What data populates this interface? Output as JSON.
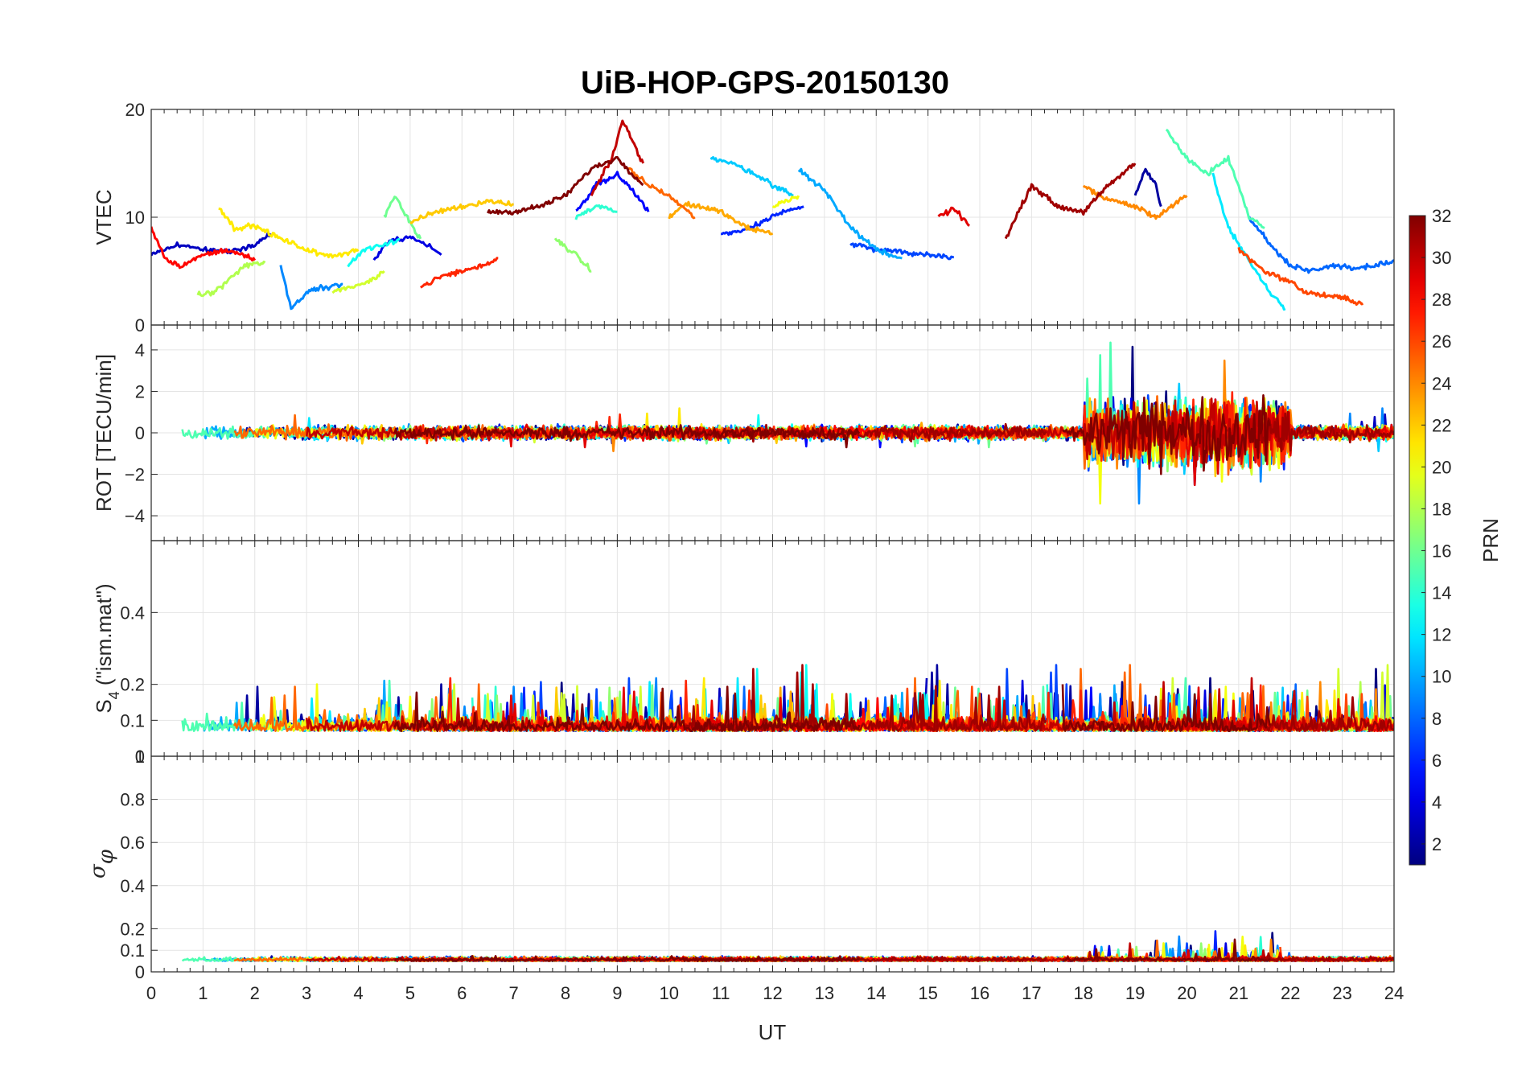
{
  "chart_data": {
    "type": "line",
    "title": "UiB-HOP-GPS-20150130",
    "xlabel": "UT",
    "x_ticks": [
      "0",
      "1",
      "2",
      "3",
      "4",
      "5",
      "6",
      "7",
      "8",
      "9",
      "10",
      "11",
      "12",
      "13",
      "14",
      "15",
      "16",
      "17",
      "18",
      "19",
      "20",
      "21",
      "22",
      "23",
      "24"
    ],
    "xlim": [
      0,
      24
    ],
    "grid": true,
    "colormap": "jet",
    "colorbar": {
      "label": "PRN",
      "range": [
        1,
        32
      ],
      "ticks": [
        "2",
        "4",
        "6",
        "8",
        "10",
        "12",
        "14",
        "16",
        "18",
        "20",
        "22",
        "24",
        "26",
        "28",
        "30",
        "32"
      ]
    },
    "panels": [
      {
        "name": "VTEC",
        "ylabel": "VTEC",
        "ylim": [
          0,
          20
        ],
        "y_ticks": [
          "0",
          "10",
          "20"
        ],
        "series": [
          {
            "prn": 2,
            "points": [
              [
                19.0,
                12
              ],
              [
                19.2,
                14.5
              ],
              [
                19.4,
                13
              ],
              [
                19.5,
                11
              ]
            ]
          },
          {
            "prn": 3,
            "points": [
              [
                0,
                6.5
              ],
              [
                0.5,
                7.5
              ],
              [
                1,
                7
              ],
              [
                1.5,
                6.8
              ],
              [
                2,
                7.5
              ],
              [
                2.3,
                8.5
              ]
            ]
          },
          {
            "prn": 4,
            "points": [
              [
                4.3,
                6
              ],
              [
                4.6,
                7.8
              ],
              [
                5,
                8.2
              ],
              [
                5.3,
                7.5
              ],
              [
                5.6,
                6.5
              ]
            ]
          },
          {
            "prn": 5,
            "points": [
              [
                8.2,
                10.5
              ],
              [
                8.6,
                13
              ],
              [
                9,
                14
              ],
              [
                9.3,
                12.5
              ],
              [
                9.6,
                10.5
              ]
            ]
          },
          {
            "prn": 6,
            "points": [
              [
                11.0,
                8.5
              ],
              [
                11.4,
                8.7
              ],
              [
                11.8,
                9.5
              ],
              [
                12.2,
                10.5
              ],
              [
                12.6,
                11
              ]
            ]
          },
          {
            "prn": 7,
            "points": [
              [
                13.5,
                7.5
              ],
              [
                14,
                7
              ],
              [
                14.5,
                6.8
              ],
              [
                15,
                6.5
              ],
              [
                15.5,
                6.3
              ]
            ]
          },
          {
            "prn": 8,
            "points": [
              [
                21.2,
                10
              ],
              [
                21.6,
                7.5
              ],
              [
                22,
                5.5
              ],
              [
                22.4,
                5
              ],
              [
                22.8,
                5.5
              ],
              [
                23.2,
                5.3
              ],
              [
                23.6,
                5.5
              ],
              [
                24,
                6
              ]
            ]
          },
          {
            "prn": 9,
            "points": [
              [
                2.5,
                5.5
              ],
              [
                2.7,
                1.5
              ],
              [
                3,
                3
              ],
              [
                3.3,
                3.5
              ],
              [
                3.7,
                3.8
              ]
            ]
          },
          {
            "prn": 10,
            "points": [
              [
                12.5,
                14.5
              ],
              [
                13,
                12.5
              ],
              [
                13.5,
                9
              ],
              [
                14,
                7
              ],
              [
                14.5,
                6.2
              ]
            ]
          },
          {
            "prn": 11,
            "points": [
              [
                10.8,
                15.5
              ],
              [
                11.2,
                15
              ],
              [
                11.6,
                14.2
              ],
              [
                12,
                13
              ],
              [
                12.4,
                12
              ]
            ]
          },
          {
            "prn": 12,
            "points": [
              [
                20.5,
                14
              ],
              [
                20.8,
                9
              ],
              [
                21.2,
                6
              ],
              [
                21.6,
                3
              ],
              [
                21.9,
                1.5
              ]
            ]
          },
          {
            "prn": 13,
            "points": [
              [
                3.8,
                5.5
              ],
              [
                4.1,
                7
              ],
              [
                4.5,
                7.5
              ],
              [
                4.8,
                8
              ]
            ]
          },
          {
            "prn": 14,
            "points": [
              [
                8.2,
                10
              ],
              [
                8.6,
                11
              ],
              [
                9,
                10.5
              ]
            ]
          },
          {
            "prn": 15,
            "points": [
              [
                19.6,
                18
              ],
              [
                20,
                15.5
              ],
              [
                20.4,
                14
              ],
              [
                20.8,
                15.5
              ],
              [
                21.2,
                10
              ],
              [
                21.5,
                9
              ]
            ]
          },
          {
            "prn": 16,
            "points": [
              [
                4.5,
                10
              ],
              [
                4.7,
                12
              ],
              [
                5,
                9.5
              ],
              [
                5.2,
                8
              ]
            ]
          },
          {
            "prn": 17,
            "points": [
              [
                7.8,
                8
              ],
              [
                8.2,
                6.5
              ],
              [
                8.5,
                5
              ]
            ]
          },
          {
            "prn": 18,
            "points": [
              [
                0.9,
                2.8
              ],
              [
                1.2,
                3
              ],
              [
                1.5,
                4.2
              ],
              [
                1.8,
                5.5
              ],
              [
                2.2,
                5.8
              ]
            ]
          },
          {
            "prn": 19,
            "points": [
              [
                3.5,
                3
              ],
              [
                3.8,
                3.5
              ],
              [
                4.2,
                4
              ],
              [
                4.5,
                5
              ]
            ]
          },
          {
            "prn": 20,
            "points": [
              [
                12,
                11
              ],
              [
                12.5,
                12
              ]
            ]
          },
          {
            "prn": 21,
            "points": [
              [
                1.3,
                11
              ],
              [
                1.6,
                9
              ],
              [
                2,
                9.2
              ],
              [
                2.5,
                8
              ],
              [
                3,
                7
              ],
              [
                3.3,
                6.5
              ],
              [
                3.6,
                6.5
              ],
              [
                4,
                7
              ]
            ]
          },
          {
            "prn": 22,
            "points": [
              [
                5,
                9.5
              ],
              [
                5.5,
                10.5
              ],
              [
                6,
                11
              ],
              [
                6.5,
                11.5
              ],
              [
                7,
                11.2
              ]
            ]
          },
          {
            "prn": 23,
            "points": [
              [
                10,
                10
              ],
              [
                10.3,
                11.2
              ],
              [
                10.6,
                11
              ],
              [
                11,
                10.5
              ],
              [
                11.5,
                9
              ],
              [
                12,
                8.5
              ]
            ]
          },
          {
            "prn": 24,
            "points": [
              [
                18,
                13
              ],
              [
                18.3,
                12
              ],
              [
                18.6,
                11.5
              ],
              [
                19,
                11
              ],
              [
                19.4,
                10
              ],
              [
                20,
                12
              ]
            ]
          },
          {
            "prn": 25,
            "points": [
              [
                9.2,
                14.5
              ],
              [
                9.6,
                13
              ],
              [
                10,
                12
              ],
              [
                10.5,
                10
              ]
            ]
          },
          {
            "prn": 26,
            "points": [
              [
                21,
                7
              ],
              [
                21.5,
                5
              ],
              [
                22,
                4
              ],
              [
                22.3,
                3
              ],
              [
                22.6,
                2.8
              ],
              [
                23,
                2.5
              ],
              [
                23.4,
                2
              ]
            ]
          },
          {
            "prn": 27,
            "points": [
              [
                5.2,
                3.5
              ],
              [
                5.6,
                4.5
              ],
              [
                6,
                5
              ],
              [
                6.4,
                5.5
              ],
              [
                6.7,
                6.2
              ]
            ]
          },
          {
            "prn": 28,
            "points": [
              [
                0,
                9
              ],
              [
                0.3,
                6
              ],
              [
                0.6,
                5.5
              ],
              [
                1,
                6.5
              ],
              [
                1.5,
                7
              ],
              [
                2,
                6
              ]
            ]
          },
          {
            "prn": 29,
            "points": [
              [
                15.2,
                10
              ],
              [
                15.5,
                10.8
              ],
              [
                15.8,
                9.2
              ]
            ]
          },
          {
            "prn": 30,
            "points": [
              [
                8.5,
                12
              ],
              [
                8.9,
                15.5
              ],
              [
                9.1,
                19
              ],
              [
                9.3,
                17
              ],
              [
                9.5,
                15
              ]
            ]
          },
          {
            "prn": 31,
            "points": [
              [
                16.5,
                8
              ],
              [
                17,
                13
              ],
              [
                17.5,
                11
              ],
              [
                18,
                10.5
              ],
              [
                18.5,
                13
              ],
              [
                19,
                15
              ]
            ]
          },
          {
            "prn": 32,
            "points": [
              [
                6.5,
                10.5
              ],
              [
                7,
                10.5
              ],
              [
                7.5,
                11
              ],
              [
                8,
                12
              ],
              [
                8.5,
                14.5
              ],
              [
                9,
                15.5
              ],
              [
                9.5,
                13
              ]
            ]
          }
        ]
      },
      {
        "name": "ROT",
        "ylabel": "ROT [TECU/min]",
        "ylim": [
          -5.2,
          5.2
        ],
        "y_ticks": [
          "-4",
          "-2",
          "0",
          "2",
          "4"
        ]
      },
      {
        "name": "S4",
        "ylabel": "S4 (\"ism.mat\")",
        "ylabel_main": "S",
        "ylabel_sub": "4",
        "ylabel_rest": " (\"ism.mat\")",
        "ylim": [
          0,
          0.6
        ],
        "y_ticks": [
          "0",
          "0.1",
          "0.2",
          "0.4"
        ],
        "y_tick_values": [
          0,
          0.1,
          0.2,
          0.4
        ]
      },
      {
        "name": "sigma_phi",
        "ylabel_main": "σ",
        "ylabel_sub": "φ",
        "ylim": [
          0,
          1
        ],
        "y_ticks": [
          "0",
          "0.1",
          "0.2",
          "0.4",
          "0.6",
          "0.8",
          "1"
        ],
        "y_tick_values": [
          0,
          0.1,
          0.2,
          0.4,
          0.6,
          0.8,
          1
        ]
      }
    ]
  }
}
